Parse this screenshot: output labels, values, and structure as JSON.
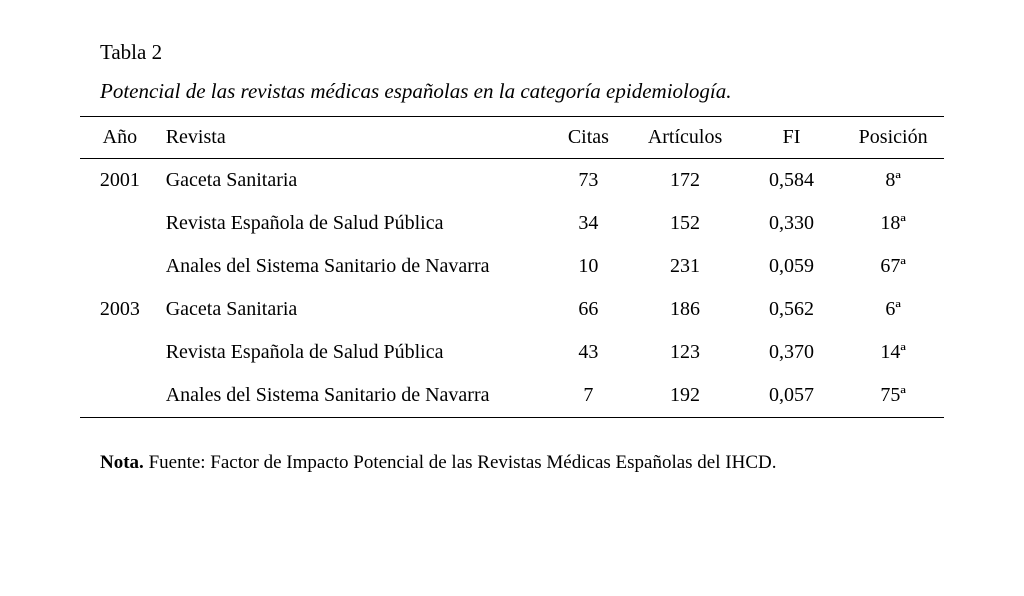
{
  "table": {
    "label": "Tabla 2",
    "caption": "Potencial de las revistas médicas españolas en la categoría epidemiología.",
    "columns": {
      "year": "Año",
      "journal": "Revista",
      "citas": "Citas",
      "articulos": "Artículos",
      "fi": "FI",
      "posicion": "Posición"
    },
    "rows": [
      {
        "year": "2001",
        "journal": "Gaceta Sanitaria",
        "citas": "73",
        "articulos": "172",
        "fi": "0,584",
        "posicion": "8ª"
      },
      {
        "year": "",
        "journal": "Revista Española de Salud Pública",
        "citas": "34",
        "articulos": "152",
        "fi": "0,330",
        "posicion": "18ª"
      },
      {
        "year": "",
        "journal": "Anales del Sistema Sanitario de Navarra",
        "citas": "10",
        "articulos": "231",
        "fi": "0,059",
        "posicion": "67ª"
      },
      {
        "year": "2003",
        "journal": "Gaceta Sanitaria",
        "citas": "66",
        "articulos": "186",
        "fi": "0,562",
        "posicion": "6ª"
      },
      {
        "year": "",
        "journal": "Revista Española de Salud Pública",
        "citas": "43",
        "articulos": "123",
        "fi": "0,370",
        "posicion": "14ª"
      },
      {
        "year": "",
        "journal": "Anales del Sistema Sanitario de Navarra",
        "citas": "7",
        "articulos": "192",
        "fi": "0,057",
        "posicion": "75ª"
      }
    ],
    "note_label": "Nota.",
    "note_text": " Fuente: Factor de Impacto Potencial de las Revistas Médicas Españolas del IHCD."
  }
}
